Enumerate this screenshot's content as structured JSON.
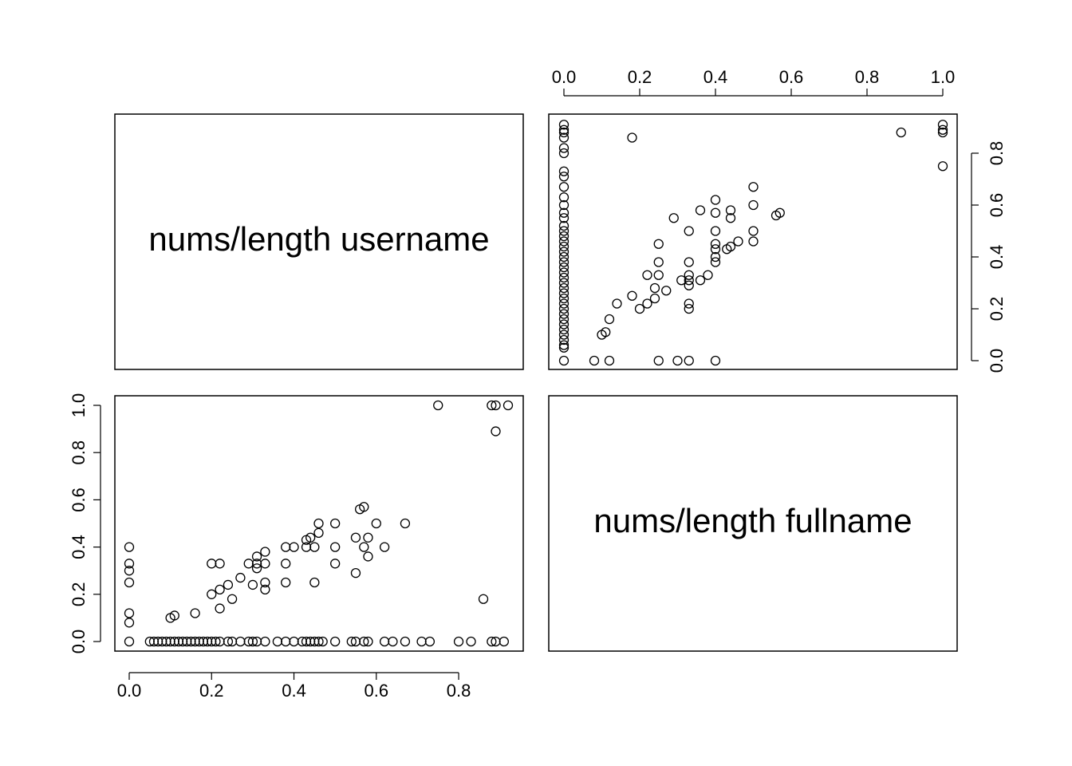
{
  "chart_data": {
    "type": "scatter",
    "layout": "pairs",
    "variables": [
      "nums/length username",
      "nums/length fullname"
    ],
    "panels": [
      {
        "id": "upper-right",
        "x_variable": "nums/length fullname",
        "y_variable": "nums/length username",
        "xlim": [
          0.0,
          1.0
        ],
        "ylim": [
          0.0,
          0.92
        ],
        "x_ticks": [
          0.0,
          0.2,
          0.4,
          0.6,
          0.8,
          1.0
        ],
        "x_tick_labels": [
          "0.0",
          "0.2",
          "0.4",
          "0.6",
          "0.8",
          "1.0"
        ],
        "y_ticks": [
          0.0,
          0.2,
          0.4,
          0.6,
          0.8
        ],
        "y_tick_labels": [
          "0.0",
          "0.2",
          "0.4",
          "0.6",
          "0.8"
        ],
        "points": [
          [
            0,
            0
          ],
          [
            0,
            0.05
          ],
          [
            0,
            0.06
          ],
          [
            0,
            0.08
          ],
          [
            0,
            0.1
          ],
          [
            0,
            0.12
          ],
          [
            0,
            0.14
          ],
          [
            0,
            0.16
          ],
          [
            0,
            0.18
          ],
          [
            0,
            0.2
          ],
          [
            0,
            0.22
          ],
          [
            0,
            0.24
          ],
          [
            0,
            0.26
          ],
          [
            0,
            0.28
          ],
          [
            0,
            0.3
          ],
          [
            0,
            0.32
          ],
          [
            0,
            0.34
          ],
          [
            0,
            0.36
          ],
          [
            0,
            0.38
          ],
          [
            0,
            0.4
          ],
          [
            0,
            0.42
          ],
          [
            0,
            0.44
          ],
          [
            0,
            0.46
          ],
          [
            0,
            0.48
          ],
          [
            0,
            0.5
          ],
          [
            0,
            0.52
          ],
          [
            0,
            0.55
          ],
          [
            0,
            0.57
          ],
          [
            0,
            0.6
          ],
          [
            0,
            0.63
          ],
          [
            0,
            0.67
          ],
          [
            0,
            0.71
          ],
          [
            0,
            0.73
          ],
          [
            0,
            0.8
          ],
          [
            0,
            0.82
          ],
          [
            0,
            0.86
          ],
          [
            0,
            0.88
          ],
          [
            0,
            0.89
          ],
          [
            0,
            0.91
          ],
          [
            0.08,
            0
          ],
          [
            0.1,
            0.1
          ],
          [
            0.11,
            0.11
          ],
          [
            0.12,
            0
          ],
          [
            0.12,
            0.16
          ],
          [
            0.14,
            0.22
          ],
          [
            0.18,
            0.25
          ],
          [
            0.18,
            0.86
          ],
          [
            0.2,
            0.2
          ],
          [
            0.22,
            0.22
          ],
          [
            0.22,
            0.33
          ],
          [
            0.24,
            0.24
          ],
          [
            0.24,
            0.28
          ],
          [
            0.25,
            0
          ],
          [
            0.25,
            0.33
          ],
          [
            0.25,
            0.38
          ],
          [
            0.25,
            0.45
          ],
          [
            0.27,
            0.27
          ],
          [
            0.29,
            0.55
          ],
          [
            0.3,
            0
          ],
          [
            0.31,
            0.31
          ],
          [
            0.33,
            0
          ],
          [
            0.33,
            0.2
          ],
          [
            0.33,
            0.22
          ],
          [
            0.33,
            0.29
          ],
          [
            0.33,
            0.31
          ],
          [
            0.33,
            0.33
          ],
          [
            0.33,
            0.38
          ],
          [
            0.33,
            0.5
          ],
          [
            0.36,
            0.31
          ],
          [
            0.36,
            0.58
          ],
          [
            0.38,
            0.33
          ],
          [
            0.4,
            0
          ],
          [
            0.4,
            0.38
          ],
          [
            0.4,
            0.4
          ],
          [
            0.4,
            0.43
          ],
          [
            0.4,
            0.45
          ],
          [
            0.4,
            0.5
          ],
          [
            0.4,
            0.57
          ],
          [
            0.4,
            0.62
          ],
          [
            0.43,
            0.43
          ],
          [
            0.44,
            0.44
          ],
          [
            0.44,
            0.55
          ],
          [
            0.44,
            0.58
          ],
          [
            0.46,
            0.46
          ],
          [
            0.5,
            0.46
          ],
          [
            0.5,
            0.5
          ],
          [
            0.5,
            0.6
          ],
          [
            0.5,
            0.67
          ],
          [
            0.56,
            0.56
          ],
          [
            0.57,
            0.57
          ],
          [
            0.89,
            0.88
          ],
          [
            1.0,
            0.75
          ],
          [
            1.0,
            0.88
          ],
          [
            1.0,
            0.89
          ],
          [
            1.0,
            0.91
          ]
        ]
      },
      {
        "id": "lower-left",
        "x_variable": "nums/length username",
        "y_variable": "nums/length fullname",
        "xlim": [
          0.0,
          0.92
        ],
        "ylim": [
          0.0,
          1.0
        ],
        "x_ticks": [
          0.0,
          0.2,
          0.4,
          0.6,
          0.8
        ],
        "x_tick_labels": [
          "0.0",
          "0.2",
          "0.4",
          "0.6",
          "0.8"
        ],
        "y_ticks": [
          0.0,
          0.2,
          0.4,
          0.6,
          0.8,
          1.0
        ],
        "y_tick_labels": [
          "0.0",
          "0.2",
          "0.4",
          "0.6",
          "0.8",
          "1.0"
        ],
        "points": [
          [
            0,
            0
          ],
          [
            0,
            0.08
          ],
          [
            0,
            0.12
          ],
          [
            0,
            0.25
          ],
          [
            0,
            0.3
          ],
          [
            0,
            0.33
          ],
          [
            0,
            0.4
          ],
          [
            0.05,
            0
          ],
          [
            0.06,
            0
          ],
          [
            0.07,
            0
          ],
          [
            0.08,
            0
          ],
          [
            0.09,
            0
          ],
          [
            0.1,
            0
          ],
          [
            0.11,
            0
          ],
          [
            0.12,
            0
          ],
          [
            0.13,
            0
          ],
          [
            0.14,
            0
          ],
          [
            0.15,
            0
          ],
          [
            0.16,
            0
          ],
          [
            0.17,
            0
          ],
          [
            0.18,
            0
          ],
          [
            0.19,
            0
          ],
          [
            0.2,
            0
          ],
          [
            0.21,
            0
          ],
          [
            0.22,
            0
          ],
          [
            0.24,
            0
          ],
          [
            0.25,
            0
          ],
          [
            0.27,
            0
          ],
          [
            0.29,
            0
          ],
          [
            0.3,
            0
          ],
          [
            0.31,
            0
          ],
          [
            0.33,
            0
          ],
          [
            0.36,
            0
          ],
          [
            0.38,
            0
          ],
          [
            0.4,
            0
          ],
          [
            0.42,
            0
          ],
          [
            0.43,
            0
          ],
          [
            0.44,
            0
          ],
          [
            0.45,
            0
          ],
          [
            0.46,
            0
          ],
          [
            0.47,
            0
          ],
          [
            0.5,
            0
          ],
          [
            0.54,
            0
          ],
          [
            0.55,
            0
          ],
          [
            0.57,
            0
          ],
          [
            0.58,
            0
          ],
          [
            0.62,
            0
          ],
          [
            0.64,
            0
          ],
          [
            0.67,
            0
          ],
          [
            0.71,
            0
          ],
          [
            0.73,
            0
          ],
          [
            0.8,
            0
          ],
          [
            0.83,
            0
          ],
          [
            0.88,
            0
          ],
          [
            0.89,
            0
          ],
          [
            0.91,
            0
          ],
          [
            0.1,
            0.1
          ],
          [
            0.11,
            0.11
          ],
          [
            0.16,
            0.12
          ],
          [
            0.2,
            0.2
          ],
          [
            0.2,
            0.33
          ],
          [
            0.22,
            0.14
          ],
          [
            0.22,
            0.22
          ],
          [
            0.22,
            0.33
          ],
          [
            0.24,
            0.24
          ],
          [
            0.25,
            0.18
          ],
          [
            0.27,
            0.27
          ],
          [
            0.29,
            0.33
          ],
          [
            0.3,
            0.24
          ],
          [
            0.31,
            0.31
          ],
          [
            0.31,
            0.33
          ],
          [
            0.31,
            0.36
          ],
          [
            0.33,
            0.22
          ],
          [
            0.33,
            0.25
          ],
          [
            0.33,
            0.33
          ],
          [
            0.33,
            0.38
          ],
          [
            0.38,
            0.25
          ],
          [
            0.38,
            0.33
          ],
          [
            0.38,
            0.4
          ],
          [
            0.4,
            0.4
          ],
          [
            0.43,
            0.4
          ],
          [
            0.43,
            0.43
          ],
          [
            0.44,
            0.44
          ],
          [
            0.45,
            0.25
          ],
          [
            0.45,
            0.4
          ],
          [
            0.46,
            0.46
          ],
          [
            0.46,
            0.5
          ],
          [
            0.5,
            0.33
          ],
          [
            0.5,
            0.4
          ],
          [
            0.5,
            0.5
          ],
          [
            0.55,
            0.29
          ],
          [
            0.55,
            0.44
          ],
          [
            0.56,
            0.56
          ],
          [
            0.57,
            0.4
          ],
          [
            0.57,
            0.57
          ],
          [
            0.58,
            0.36
          ],
          [
            0.58,
            0.44
          ],
          [
            0.6,
            0.5
          ],
          [
            0.62,
            0.4
          ],
          [
            0.67,
            0.5
          ],
          [
            0.75,
            1.0
          ],
          [
            0.86,
            0.18
          ],
          [
            0.88,
            1.0
          ],
          [
            0.89,
            0.89
          ],
          [
            0.89,
            1.0
          ],
          [
            0.92,
            1.0
          ]
        ]
      }
    ]
  }
}
